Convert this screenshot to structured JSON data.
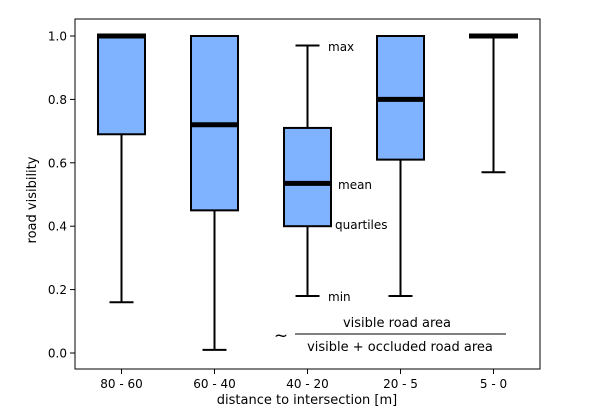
{
  "chart_data": {
    "type": "boxplot",
    "xlabel": "distance to intersection [m]",
    "ylabel": "road visibility",
    "ylim": [
      -0.05,
      1.05
    ],
    "yticks": [
      0.0,
      0.2,
      0.4,
      0.6,
      0.8,
      1.0
    ],
    "ytick_labels": [
      "0.0",
      "0.2",
      "0.4",
      "0.6",
      "0.8",
      "1.0"
    ],
    "grid": false,
    "box_color": "#80b3ff",
    "categories": [
      "80 - 60",
      "60 - 40",
      "40 - 20",
      "20 - 5",
      "5 - 0"
    ],
    "boxes": [
      {
        "category": "80 - 60",
        "min": 0.16,
        "q1": 0.69,
        "mean": 1.0,
        "q3": 1.0,
        "max": 1.0
      },
      {
        "category": "60 - 40",
        "min": 0.01,
        "q1": 0.45,
        "mean": 0.72,
        "q3": 1.0,
        "max": 1.0
      },
      {
        "category": "40 - 20",
        "min": 0.18,
        "q1": 0.4,
        "mean": 0.535,
        "q3": 0.71,
        "max": 0.97
      },
      {
        "category": "20 - 5",
        "min": 0.18,
        "q1": 0.61,
        "mean": 0.8,
        "q3": 1.0,
        "max": 1.0
      },
      {
        "category": "5 - 0",
        "min": 0.57,
        "q1": 1.0,
        "mean": 1.0,
        "q3": 1.0,
        "max": 1.0
      }
    ],
    "annotations": {
      "max": "max",
      "mean": "mean",
      "quartiles": "quartiles",
      "min": "min"
    },
    "formula": {
      "prefix": "~",
      "numerator": "visible road area",
      "denominator": "visible + occluded road area"
    }
  }
}
